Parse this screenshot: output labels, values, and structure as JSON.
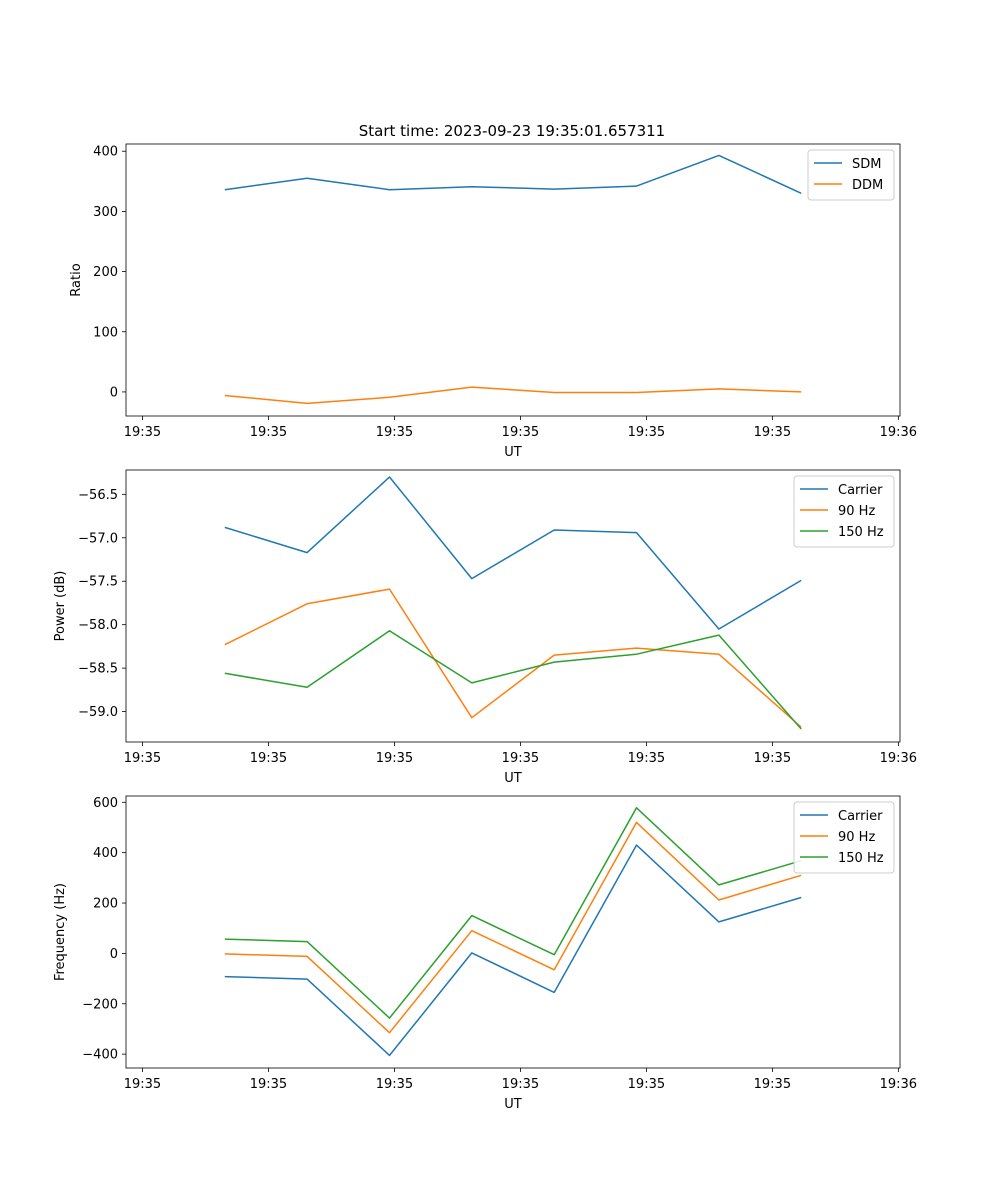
{
  "figure": {
    "title": "Start time: 2023-09-23 19:35:01.657311"
  },
  "colors": {
    "blue": "#1f77b4",
    "orange": "#ff7f0e",
    "green": "#2ca02c"
  },
  "chart_data": [
    {
      "type": "line",
      "ylabel": "Ratio",
      "xlabel": "UT",
      "xlim": [
        -0.2,
        9.2
      ],
      "ylim": [
        -40,
        412
      ],
      "x": [
        1,
        2,
        3,
        4,
        5,
        6,
        7,
        8
      ],
      "xticks": [
        0,
        1.53,
        3.06,
        4.59,
        6.12,
        7.65,
        9.18
      ],
      "xtick_labels": [
        "19:35",
        "19:35",
        "19:35",
        "19:35",
        "19:35",
        "19:35",
        "19:36"
      ],
      "yticks": [
        0,
        100,
        200,
        300,
        400
      ],
      "ytick_labels": [
        "0",
        "100",
        "200",
        "300",
        "400"
      ],
      "legend": "top-right",
      "series": [
        {
          "name": "SDM",
          "color": "#1f77b4",
          "values": [
            336,
            355,
            336,
            341,
            337,
            342,
            393,
            330
          ]
        },
        {
          "name": "DDM",
          "color": "#ff7f0e",
          "values": [
            -6,
            -19,
            -9,
            8,
            -1,
            -1,
            5,
            0
          ]
        }
      ]
    },
    {
      "type": "line",
      "ylabel": "Power (dB)",
      "xlabel": "UT",
      "xlim": [
        -0.2,
        9.2
      ],
      "ylim": [
        -59.35,
        -56.22
      ],
      "x": [
        1,
        2,
        3,
        4,
        5,
        6,
        7,
        8
      ],
      "xticks": [
        0,
        1.53,
        3.06,
        4.59,
        6.12,
        7.65,
        9.18
      ],
      "xtick_labels": [
        "19:35",
        "19:35",
        "19:35",
        "19:35",
        "19:35",
        "19:35",
        "19:36"
      ],
      "yticks": [
        -59.0,
        -58.5,
        -58.0,
        -57.5,
        -57.0,
        -56.5
      ],
      "ytick_labels": [
        "−59.0",
        "−58.5",
        "−58.0",
        "−57.5",
        "−57.0",
        "−56.5"
      ],
      "legend": "top-right",
      "series": [
        {
          "name": "Carrier",
          "color": "#1f77b4",
          "values": [
            -56.88,
            -57.17,
            -56.3,
            -57.47,
            -56.91,
            -56.94,
            -58.05,
            -57.49
          ]
        },
        {
          "name": "90 Hz",
          "color": "#ff7f0e",
          "values": [
            -58.23,
            -57.76,
            -57.59,
            -59.07,
            -58.35,
            -58.27,
            -58.34,
            -59.18
          ]
        },
        {
          "name": "150 Hz",
          "color": "#2ca02c",
          "values": [
            -58.56,
            -58.72,
            -58.07,
            -58.67,
            -58.43,
            -58.34,
            -58.12,
            -59.2
          ]
        }
      ]
    },
    {
      "type": "line",
      "ylabel": "Frequency (Hz)",
      "xlabel": "UT",
      "xlim": [
        -0.2,
        9.2
      ],
      "ylim": [
        -455,
        625
      ],
      "x": [
        1,
        2,
        3,
        4,
        5,
        6,
        7,
        8
      ],
      "xticks": [
        0,
        1.53,
        3.06,
        4.59,
        6.12,
        7.65,
        9.18
      ],
      "xtick_labels": [
        "19:35",
        "19:35",
        "19:35",
        "19:35",
        "19:35",
        "19:35",
        "19:36"
      ],
      "yticks": [
        -400,
        -200,
        0,
        200,
        400,
        600
      ],
      "ytick_labels": [
        "−400",
        "−200",
        "0",
        "200",
        "400",
        "600"
      ],
      "legend": "top-right",
      "series": [
        {
          "name": "Carrier",
          "color": "#1f77b4",
          "values": [
            -92,
            -102,
            -405,
            2,
            -155,
            430,
            125,
            222
          ]
        },
        {
          "name": "90 Hz",
          "color": "#ff7f0e",
          "values": [
            -2,
            -12,
            -315,
            90,
            -65,
            520,
            212,
            310
          ]
        },
        {
          "name": "150 Hz",
          "color": "#2ca02c",
          "values": [
            57,
            47,
            -257,
            150,
            -5,
            578,
            272,
            368
          ]
        }
      ]
    }
  ]
}
